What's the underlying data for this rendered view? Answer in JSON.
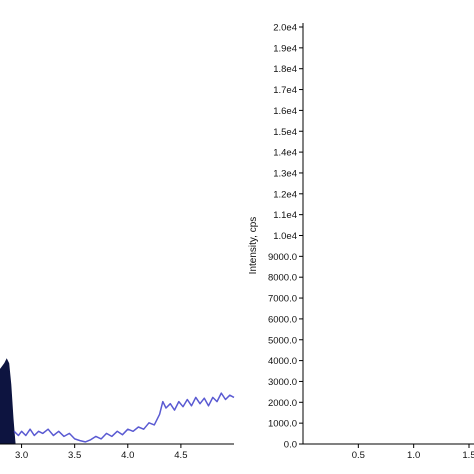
{
  "chart_data": [
    {
      "type": "line",
      "panel": "left",
      "xlim": [
        2.75,
        5.0
      ],
      "x_ticks": [
        "3.0",
        "3.5",
        "4.0",
        "4.5"
      ],
      "x_tick_values": [
        3.0,
        3.5,
        4.0,
        4.5
      ],
      "ylim": [
        0,
        1.0
      ],
      "series": [
        {
          "style": "filled-peak",
          "color": "#0d1440",
          "x": [
            2.75,
            2.78,
            2.81,
            2.84,
            2.86,
            2.88,
            2.9,
            2.91,
            2.92,
            2.93,
            2.94
          ],
          "values": [
            0.16,
            0.17,
            0.18,
            0.19,
            0.2,
            0.19,
            0.14,
            0.1,
            0.06,
            0.03,
            0.0
          ]
        },
        {
          "style": "line",
          "color": "#5a5ad2",
          "x": [
            2.93,
            2.97,
            3.0,
            3.04,
            3.08,
            3.12,
            3.16,
            3.2,
            3.25,
            3.3,
            3.35,
            3.4,
            3.45,
            3.5,
            3.55,
            3.6,
            3.65,
            3.7,
            3.75,
            3.8,
            3.85,
            3.9,
            3.95,
            4.0,
            4.05,
            4.1,
            4.15,
            4.2,
            4.25,
            4.3,
            4.33,
            4.36,
            4.4,
            4.44,
            4.48,
            4.52,
            4.56,
            4.6,
            4.64,
            4.68,
            4.72,
            4.76,
            4.8,
            4.84,
            4.88,
            4.92,
            4.96,
            5.0
          ],
          "values": [
            0.03,
            0.02,
            0.03,
            0.02,
            0.035,
            0.02,
            0.03,
            0.025,
            0.035,
            0.02,
            0.03,
            0.018,
            0.025,
            0.012,
            0.008,
            0.005,
            0.01,
            0.018,
            0.012,
            0.025,
            0.018,
            0.03,
            0.022,
            0.035,
            0.03,
            0.04,
            0.035,
            0.05,
            0.045,
            0.07,
            0.1,
            0.085,
            0.095,
            0.08,
            0.1,
            0.088,
            0.105,
            0.09,
            0.11,
            0.095,
            0.108,
            0.09,
            0.11,
            0.1,
            0.12,
            0.105,
            0.115,
            0.11
          ]
        }
      ]
    },
    {
      "type": "line",
      "panel": "right",
      "ylabel": "Intensity, cps",
      "ylim": [
        0,
        20000
      ],
      "y_ticks": [
        "0.0",
        "1000.0",
        "2000.0",
        "3000.0",
        "4000.0",
        "5000.0",
        "6000.0",
        "7000.0",
        "8000.0",
        "9000.0",
        "1.0e4",
        "1.1e4",
        "1.2e4",
        "1.3e4",
        "1.4e4",
        "1.5e4",
        "1.6e4",
        "1.7e4",
        "1.8e4",
        "1.9e4",
        "2.0e4"
      ],
      "y_tick_values": [
        0,
        1000,
        2000,
        3000,
        4000,
        5000,
        6000,
        7000,
        8000,
        9000,
        10000,
        11000,
        12000,
        13000,
        14000,
        15000,
        16000,
        17000,
        18000,
        19000,
        20000
      ],
      "xlim": [
        0.0,
        1.5
      ],
      "x_ticks": [
        "0.5",
        "1.0",
        "1.5"
      ],
      "x_tick_values": [
        0.5,
        1.0,
        1.5
      ],
      "series": []
    }
  ]
}
